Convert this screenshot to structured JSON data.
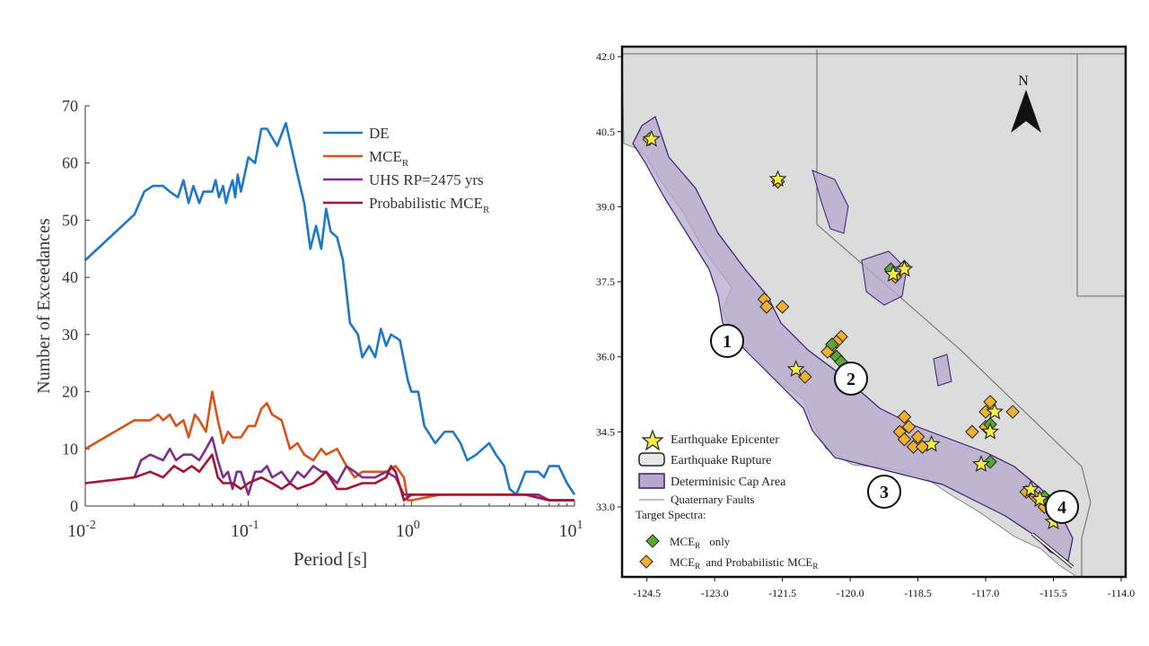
{
  "left_chart": {
    "ylabel": "Number of Exceedances",
    "xlabel": "Period [s]",
    "yticks": [
      "0",
      "10",
      "20",
      "30",
      "40",
      "50",
      "60",
      "70"
    ],
    "xticks": [
      {
        "base": "10",
        "exp": "-2"
      },
      {
        "base": "10",
        "exp": "-1"
      },
      {
        "base": "10",
        "exp": "0"
      },
      {
        "base": "10",
        "exp": "1"
      }
    ],
    "legend": [
      {
        "text": "DE",
        "sub": ""
      },
      {
        "text": "MCE",
        "sub": "R"
      },
      {
        "text": "UHS RP=2475 yrs",
        "sub": ""
      },
      {
        "text": "Probabilistic MCE",
        "sub": "R"
      }
    ]
  },
  "map": {
    "yticks": [
      "42.0",
      "40.5",
      "39.0",
      "37.5",
      "36.0",
      "34.5",
      "33.0"
    ],
    "xticks": [
      "-124.5",
      "-123.0",
      "-121.5",
      "-120.0",
      "-118.5",
      "-117.0",
      "-115.5",
      "-114.0"
    ],
    "north_label": "N",
    "region_labels": [
      "1",
      "2",
      "3",
      "4"
    ],
    "legend": {
      "epicenter": "Earthquake Epicenter",
      "rupture": "Earthquake Rupture",
      "cap_area": "Determinisic Cap Area",
      "faults": "Quaternary Faults",
      "target_title": "Target Spectra:",
      "mce_only": "only",
      "mce_prob": "and Probabilistic MCE"
    },
    "mce_label": "MCE",
    "sub_r": "R"
  },
  "chart_data": [
    {
      "type": "line",
      "xscale": "log",
      "xlim": [
        0.01,
        10
      ],
      "ylim": [
        0,
        70
      ],
      "xlabel": "Period [s]",
      "ylabel": "Number of Exceedances",
      "legend_position": "top-right",
      "series": [
        {
          "name": "DE",
          "color": "#1f77c8",
          "points": [
            [
              0.01,
              43
            ],
            [
              0.02,
              51
            ],
            [
              0.023,
              55
            ],
            [
              0.026,
              56
            ],
            [
              0.03,
              56
            ],
            [
              0.033,
              55
            ],
            [
              0.037,
              54
            ],
            [
              0.04,
              57
            ],
            [
              0.043,
              53
            ],
            [
              0.046,
              56
            ],
            [
              0.05,
              53
            ],
            [
              0.053,
              55
            ],
            [
              0.056,
              55
            ],
            [
              0.06,
              55
            ],
            [
              0.063,
              57
            ],
            [
              0.066,
              54
            ],
            [
              0.07,
              56
            ],
            [
              0.073,
              53
            ],
            [
              0.076,
              55
            ],
            [
              0.08,
              57
            ],
            [
              0.083,
              54
            ],
            [
              0.086,
              58
            ],
            [
              0.09,
              55
            ],
            [
              0.1,
              61
            ],
            [
              0.11,
              60
            ],
            [
              0.12,
              66
            ],
            [
              0.13,
              66
            ],
            [
              0.15,
              63
            ],
            [
              0.17,
              67
            ],
            [
              0.2,
              58
            ],
            [
              0.22,
              53
            ],
            [
              0.24,
              45
            ],
            [
              0.26,
              49
            ],
            [
              0.28,
              45
            ],
            [
              0.3,
              52
            ],
            [
              0.32,
              48
            ],
            [
              0.35,
              47
            ],
            [
              0.38,
              43
            ],
            [
              0.42,
              32
            ],
            [
              0.47,
              30
            ],
            [
              0.5,
              26
            ],
            [
              0.55,
              28
            ],
            [
              0.6,
              26
            ],
            [
              0.65,
              31
            ],
            [
              0.7,
              28
            ],
            [
              0.75,
              30
            ],
            [
              0.85,
              29
            ],
            [
              0.95,
              22
            ],
            [
              1.0,
              20
            ],
            [
              1.1,
              20
            ],
            [
              1.2,
              14
            ],
            [
              1.4,
              11
            ],
            [
              1.6,
              13
            ],
            [
              1.8,
              13
            ],
            [
              2.0,
              11
            ],
            [
              2.2,
              8
            ],
            [
              2.5,
              9
            ],
            [
              3.0,
              11
            ],
            [
              3.3,
              9
            ],
            [
              3.7,
              7
            ],
            [
              4.0,
              3
            ],
            [
              4.4,
              2
            ],
            [
              5.0,
              6
            ],
            [
              6.0,
              6
            ],
            [
              6.5,
              5
            ],
            [
              7.0,
              7
            ],
            [
              8.0,
              7
            ],
            [
              9.0,
              4
            ],
            [
              10.0,
              2
            ]
          ]
        },
        {
          "name": "MCE_R",
          "color": "#d95319",
          "points": [
            [
              0.01,
              10
            ],
            [
              0.02,
              15
            ],
            [
              0.025,
              15
            ],
            [
              0.028,
              16
            ],
            [
              0.03,
              15
            ],
            [
              0.033,
              16
            ],
            [
              0.036,
              14
            ],
            [
              0.04,
              15
            ],
            [
              0.043,
              12
            ],
            [
              0.047,
              16
            ],
            [
              0.05,
              15
            ],
            [
              0.055,
              13
            ],
            [
              0.06,
              20
            ],
            [
              0.065,
              15
            ],
            [
              0.07,
              11
            ],
            [
              0.075,
              13
            ],
            [
              0.08,
              12
            ],
            [
              0.09,
              12
            ],
            [
              0.1,
              14
            ],
            [
              0.11,
              14
            ],
            [
              0.12,
              17
            ],
            [
              0.13,
              18
            ],
            [
              0.14,
              16
            ],
            [
              0.16,
              15
            ],
            [
              0.18,
              10
            ],
            [
              0.2,
              11
            ],
            [
              0.22,
              9
            ],
            [
              0.25,
              8
            ],
            [
              0.28,
              10
            ],
            [
              0.3,
              9
            ],
            [
              0.35,
              10
            ],
            [
              0.4,
              7
            ],
            [
              0.45,
              5
            ],
            [
              0.5,
              6
            ],
            [
              0.6,
              6
            ],
            [
              0.7,
              6
            ],
            [
              0.8,
              7
            ],
            [
              0.9,
              5
            ],
            [
              0.95,
              1
            ],
            [
              1.0,
              1
            ],
            [
              1.5,
              2
            ],
            [
              2.0,
              2
            ],
            [
              3.0,
              2
            ],
            [
              4.0,
              2
            ],
            [
              5.0,
              2
            ],
            [
              6.0,
              2
            ],
            [
              7.0,
              1
            ],
            [
              8.0,
              1
            ],
            [
              10.0,
              1
            ]
          ]
        },
        {
          "name": "UHS RP=2475 yrs",
          "color": "#7e2f8e",
          "points": [
            [
              0.02,
              5
            ],
            [
              0.022,
              8
            ],
            [
              0.025,
              9
            ],
            [
              0.03,
              8
            ],
            [
              0.033,
              10
            ],
            [
              0.036,
              8
            ],
            [
              0.04,
              9
            ],
            [
              0.045,
              9
            ],
            [
              0.05,
              8
            ],
            [
              0.055,
              10
            ],
            [
              0.06,
              12
            ],
            [
              0.065,
              8
            ],
            [
              0.07,
              5
            ],
            [
              0.075,
              6
            ],
            [
              0.08,
              3
            ],
            [
              0.085,
              6
            ],
            [
              0.09,
              6
            ],
            [
              0.1,
              2
            ],
            [
              0.11,
              6
            ],
            [
              0.12,
              6
            ],
            [
              0.13,
              7
            ],
            [
              0.14,
              5
            ],
            [
              0.16,
              6
            ],
            [
              0.18,
              4
            ],
            [
              0.2,
              6
            ],
            [
              0.22,
              5
            ],
            [
              0.25,
              7
            ],
            [
              0.28,
              6
            ],
            [
              0.3,
              6
            ],
            [
              0.35,
              4
            ],
            [
              0.4,
              7
            ],
            [
              0.45,
              6
            ],
            [
              0.5,
              5
            ],
            [
              0.6,
              5
            ],
            [
              0.7,
              6
            ],
            [
              0.8,
              5
            ],
            [
              0.9,
              2
            ],
            [
              1.0,
              2
            ],
            [
              1.5,
              2
            ],
            [
              2.0,
              2
            ],
            [
              3.0,
              2
            ],
            [
              4.0,
              2
            ],
            [
              5.0,
              2
            ],
            [
              6.0,
              2
            ],
            [
              7.0,
              1
            ],
            [
              8.0,
              1
            ],
            [
              10.0,
              1
            ]
          ]
        },
        {
          "name": "Probabilistic MCE_R",
          "color": "#a2142f",
          "points": [
            [
              0.01,
              4
            ],
            [
              0.02,
              5
            ],
            [
              0.025,
              6
            ],
            [
              0.03,
              5
            ],
            [
              0.035,
              7
            ],
            [
              0.04,
              6
            ],
            [
              0.045,
              7
            ],
            [
              0.05,
              6
            ],
            [
              0.06,
              9
            ],
            [
              0.065,
              5
            ],
            [
              0.07,
              4
            ],
            [
              0.08,
              4
            ],
            [
              0.09,
              3
            ],
            [
              0.1,
              4
            ],
            [
              0.12,
              5
            ],
            [
              0.14,
              4
            ],
            [
              0.16,
              3
            ],
            [
              0.18,
              4
            ],
            [
              0.2,
              3
            ],
            [
              0.25,
              4
            ],
            [
              0.3,
              6
            ],
            [
              0.35,
              3
            ],
            [
              0.4,
              3
            ],
            [
              0.5,
              4
            ],
            [
              0.6,
              4
            ],
            [
              0.7,
              5
            ],
            [
              0.75,
              7
            ],
            [
              0.8,
              6
            ],
            [
              0.9,
              1
            ],
            [
              1.0,
              2
            ],
            [
              1.5,
              2
            ],
            [
              2.0,
              2
            ],
            [
              3.0,
              2
            ],
            [
              4.0,
              2
            ],
            [
              5.0,
              2
            ],
            [
              7.0,
              1
            ],
            [
              10.0,
              1
            ]
          ]
        }
      ]
    }
  ],
  "map_points": {
    "epicenters": [
      [
        -124.4,
        40.35
      ],
      [
        -121.6,
        39.55
      ],
      [
        -119.05,
        37.65
      ],
      [
        -118.8,
        37.75
      ],
      [
        -121.2,
        35.75
      ],
      [
        -118.2,
        34.25
      ],
      [
        -116.8,
        34.9
      ],
      [
        -116.9,
        34.5
      ],
      [
        -117.1,
        33.85
      ],
      [
        -116.0,
        33.35
      ],
      [
        -115.5,
        32.7
      ],
      [
        -115.8,
        33.15
      ]
    ],
    "green": [
      [
        -119.1,
        37.75
      ],
      [
        -120.3,
        36.0
      ],
      [
        -120.2,
        35.9
      ],
      [
        -116.9,
        33.9
      ],
      [
        -115.7,
        33.2
      ],
      [
        -115.6,
        33.1
      ],
      [
        -116.9,
        34.65
      ],
      [
        -120.4,
        36.25
      ],
      [
        -115.4,
        33.05
      ]
    ],
    "orange": [
      [
        -124.45,
        40.35
      ],
      [
        -121.6,
        39.5
      ],
      [
        -118.8,
        37.8
      ],
      [
        -119.0,
        37.6
      ],
      [
        -121.9,
        37.15
      ],
      [
        -121.85,
        37.0
      ],
      [
        -121.5,
        37.0
      ],
      [
        -120.4,
        36.2
      ],
      [
        -120.2,
        36.4
      ],
      [
        -120.5,
        36.1
      ],
      [
        -120.3,
        36.3
      ],
      [
        -121.0,
        35.6
      ],
      [
        -118.8,
        34.8
      ],
      [
        -118.7,
        34.6
      ],
      [
        -118.5,
        34.4
      ],
      [
        -118.9,
        34.5
      ],
      [
        -118.6,
        34.2
      ],
      [
        -118.4,
        34.2
      ],
      [
        -118.8,
        34.35
      ],
      [
        -116.9,
        35.1
      ],
      [
        -117.0,
        34.9
      ],
      [
        -116.4,
        34.9
      ],
      [
        -117.3,
        34.5
      ],
      [
        -117.0,
        34.6
      ],
      [
        -116.1,
        33.3
      ],
      [
        -115.9,
        33.2
      ],
      [
        -115.7,
        33.0
      ]
    ]
  }
}
